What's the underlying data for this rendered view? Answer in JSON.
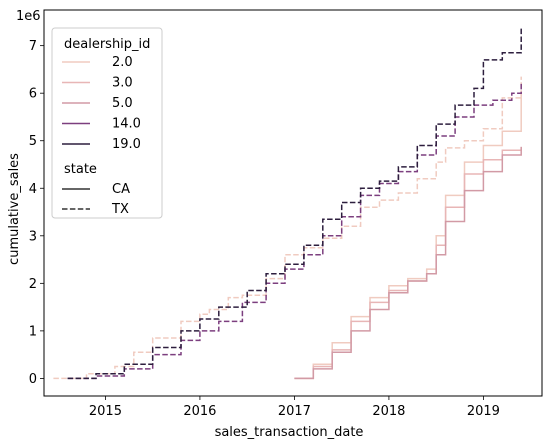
{
  "chart_data": {
    "type": "line",
    "xlabel": "sales_transaction_date",
    "ylabel": "cumulative_sales",
    "offset_text": "1e6",
    "xlim": [
      2014.35,
      2019.62
    ],
    "ylim": [
      -0.37,
      7.75
    ],
    "x_ticks": [
      {
        "value": 2015,
        "label": "2015"
      },
      {
        "value": 2016,
        "label": "2016"
      },
      {
        "value": 2017,
        "label": "2017"
      },
      {
        "value": 2018,
        "label": "2018"
      },
      {
        "value": 2019,
        "label": "2019"
      }
    ],
    "y_ticks": [
      {
        "value": 0,
        "label": "0"
      },
      {
        "value": 1,
        "label": "1"
      },
      {
        "value": 2,
        "label": "2"
      },
      {
        "value": 3,
        "label": "3"
      },
      {
        "value": 4,
        "label": "4"
      },
      {
        "value": 5,
        "label": "5"
      },
      {
        "value": 6,
        "label": "6"
      },
      {
        "value": 7,
        "label": "7"
      }
    ],
    "legend": {
      "placement": "upper-left",
      "hue_title": "dealership_id",
      "hue_items": [
        {
          "label": "2.0",
          "color": "#f0cbc0"
        },
        {
          "label": "3.0",
          "color": "#e8b6b6"
        },
        {
          "label": "5.0",
          "color": "#d29aa5"
        },
        {
          "label": "14.0",
          "color": "#7c3f7f"
        },
        {
          "label": "19.0",
          "color": "#2d1e3e"
        }
      ],
      "style_title": "state",
      "style_items": [
        {
          "label": "CA",
          "dash": "solid"
        },
        {
          "label": "TX",
          "dash": "dashed"
        }
      ]
    },
    "series": [
      {
        "dealership_id": "2.0",
        "state": "TX",
        "color": "#f0cbc0",
        "dash": "dashed",
        "x": [
          2014.45,
          2014.8,
          2015.1,
          2015.3,
          2015.5,
          2015.8,
          2016.0,
          2016.1,
          2016.3,
          2016.45,
          2016.7,
          2016.9,
          2017.1,
          2017.3,
          2017.5,
          2017.7,
          2017.9,
          2018.1,
          2018.3,
          2018.5,
          2018.6,
          2018.8,
          2019.0,
          2019.2,
          2019.4
        ],
        "y": [
          0.0,
          0.1,
          0.25,
          0.55,
          0.85,
          1.2,
          1.35,
          1.45,
          1.7,
          1.75,
          2.1,
          2.6,
          2.75,
          2.95,
          3.2,
          3.6,
          3.75,
          3.9,
          4.2,
          4.55,
          4.85,
          5.0,
          5.25,
          5.9,
          6.35
        ]
      },
      {
        "dealership_id": "2.0",
        "state": "CA",
        "color": "#f0cbc0",
        "dash": "solid",
        "x": [
          2017.0,
          2017.2,
          2017.4,
          2017.6,
          2017.8,
          2018.0,
          2018.2,
          2018.4,
          2018.5,
          2018.6,
          2018.8,
          2019.0,
          2019.2,
          2019.4
        ],
        "y": [
          0.0,
          0.3,
          0.75,
          1.3,
          1.7,
          1.95,
          2.1,
          2.3,
          3.0,
          3.85,
          4.55,
          4.9,
          5.2,
          6.0
        ]
      },
      {
        "dealership_id": "3.0",
        "state": "CA",
        "color": "#e8b6b6",
        "dash": "solid",
        "x": [
          2017.0,
          2017.2,
          2017.4,
          2017.6,
          2017.8,
          2018.0,
          2018.2,
          2018.4,
          2018.5,
          2018.6,
          2018.8,
          2019.0,
          2019.2,
          2019.4
        ],
        "y": [
          0.0,
          0.25,
          0.6,
          1.2,
          1.6,
          1.85,
          2.05,
          2.2,
          2.8,
          3.6,
          4.3,
          4.6,
          4.8,
          4.87
        ]
      },
      {
        "dealership_id": "5.0",
        "state": "CA",
        "color": "#d29aa5",
        "dash": "solid",
        "x": [
          2017.0,
          2017.2,
          2017.4,
          2017.6,
          2017.8,
          2018.0,
          2018.2,
          2018.4,
          2018.5,
          2018.6,
          2018.8,
          2019.0,
          2019.2,
          2019.4
        ],
        "y": [
          0.0,
          0.2,
          0.55,
          1.0,
          1.45,
          1.8,
          2.05,
          2.2,
          2.6,
          3.3,
          3.95,
          4.35,
          4.7,
          4.87
        ]
      },
      {
        "dealership_id": "14.0",
        "state": "TX",
        "color": "#7c3f7f",
        "dash": "dashed",
        "x": [
          2014.6,
          2014.9,
          2015.2,
          2015.5,
          2015.8,
          2016.0,
          2016.2,
          2016.45,
          2016.7,
          2016.9,
          2017.1,
          2017.3,
          2017.5,
          2017.7,
          2017.9,
          2018.1,
          2018.3,
          2018.5,
          2018.7,
          2018.9,
          2019.1,
          2019.3,
          2019.4
        ],
        "y": [
          0.0,
          0.05,
          0.2,
          0.5,
          0.8,
          1.0,
          1.2,
          1.6,
          2.0,
          2.3,
          2.6,
          3.0,
          3.4,
          3.85,
          4.1,
          4.35,
          4.7,
          5.1,
          5.5,
          5.75,
          5.85,
          6.0,
          6.2
        ]
      },
      {
        "dealership_id": "19.0",
        "state": "TX",
        "color": "#2d1e3e",
        "dash": "dashed",
        "x": [
          2014.6,
          2014.9,
          2015.2,
          2015.5,
          2015.8,
          2016.0,
          2016.2,
          2016.5,
          2016.7,
          2016.9,
          2017.1,
          2017.3,
          2017.5,
          2017.7,
          2017.9,
          2018.1,
          2018.3,
          2018.5,
          2018.7,
          2018.9,
          2019.0,
          2019.2,
          2019.4
        ],
        "y": [
          0.0,
          0.1,
          0.3,
          0.65,
          1.0,
          1.25,
          1.5,
          1.85,
          2.2,
          2.4,
          2.8,
          3.35,
          3.7,
          4.0,
          4.15,
          4.45,
          4.9,
          5.35,
          5.75,
          6.1,
          6.7,
          6.85,
          7.4
        ]
      }
    ]
  }
}
